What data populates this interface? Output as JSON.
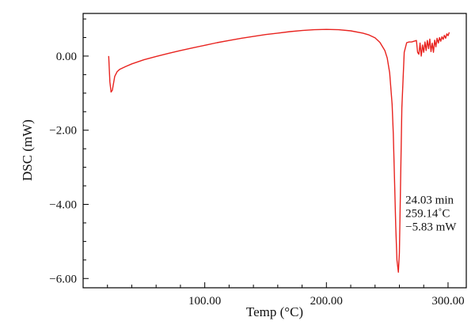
{
  "chart_data": {
    "type": "line",
    "title": "",
    "xlabel": "Temp (°C)",
    "ylabel": "DSC (mW)",
    "xlim": [
      0,
      315
    ],
    "ylim": [
      -6.25,
      1.15
    ],
    "x_ticks": [
      100,
      200,
      300
    ],
    "x_tick_labels": [
      "100.00",
      "200.00",
      "300.00"
    ],
    "y_ticks": [
      0,
      -2,
      -4,
      -6
    ],
    "y_tick_labels": [
      "0.00",
      "−2.00",
      "−4.00",
      "−6.00"
    ],
    "grid": false,
    "legend": "none",
    "series": [
      {
        "color": "#e8231f",
        "x": [
          21,
          22,
          23,
          24,
          26,
          28,
          30,
          35,
          40,
          50,
          60,
          70,
          80,
          90,
          100,
          110,
          120,
          130,
          140,
          150,
          160,
          170,
          180,
          190,
          200,
          210,
          220,
          230,
          235,
          240,
          244,
          248,
          250,
          252,
          254,
          255,
          256,
          257,
          258,
          259.14,
          260,
          261,
          262,
          264,
          266,
          268,
          270,
          272,
          274,
          275,
          276,
          277,
          278,
          279,
          280,
          281,
          282,
          283,
          284,
          285,
          286,
          287,
          288,
          289,
          290,
          291,
          292,
          293,
          294,
          295,
          296,
          297,
          298,
          299,
          300,
          301
        ],
        "y": [
          0.0,
          -0.7,
          -0.97,
          -0.92,
          -0.55,
          -0.42,
          -0.36,
          -0.28,
          -0.21,
          -0.1,
          -0.01,
          0.07,
          0.15,
          0.22,
          0.29,
          0.36,
          0.42,
          0.48,
          0.53,
          0.58,
          0.62,
          0.66,
          0.69,
          0.71,
          0.72,
          0.71,
          0.68,
          0.62,
          0.57,
          0.49,
          0.37,
          0.15,
          -0.05,
          -0.45,
          -1.3,
          -2.1,
          -3.3,
          -4.6,
          -5.5,
          -5.83,
          -5.3,
          -3.4,
          -1.4,
          0.1,
          0.36,
          0.38,
          0.38,
          0.4,
          0.42,
          0.1,
          0.05,
          0.35,
          0.0,
          0.3,
          0.1,
          0.38,
          0.15,
          0.42,
          0.2,
          0.46,
          0.12,
          0.35,
          0.1,
          0.43,
          0.25,
          0.48,
          0.35,
          0.5,
          0.4,
          0.52,
          0.45,
          0.56,
          0.48,
          0.6,
          0.55,
          0.64
        ]
      }
    ],
    "annotation": {
      "x": 259.14,
      "y": -5.83,
      "lines": [
        "24.03 min",
        "259.14˚C",
        "−5.83 mW"
      ]
    }
  }
}
